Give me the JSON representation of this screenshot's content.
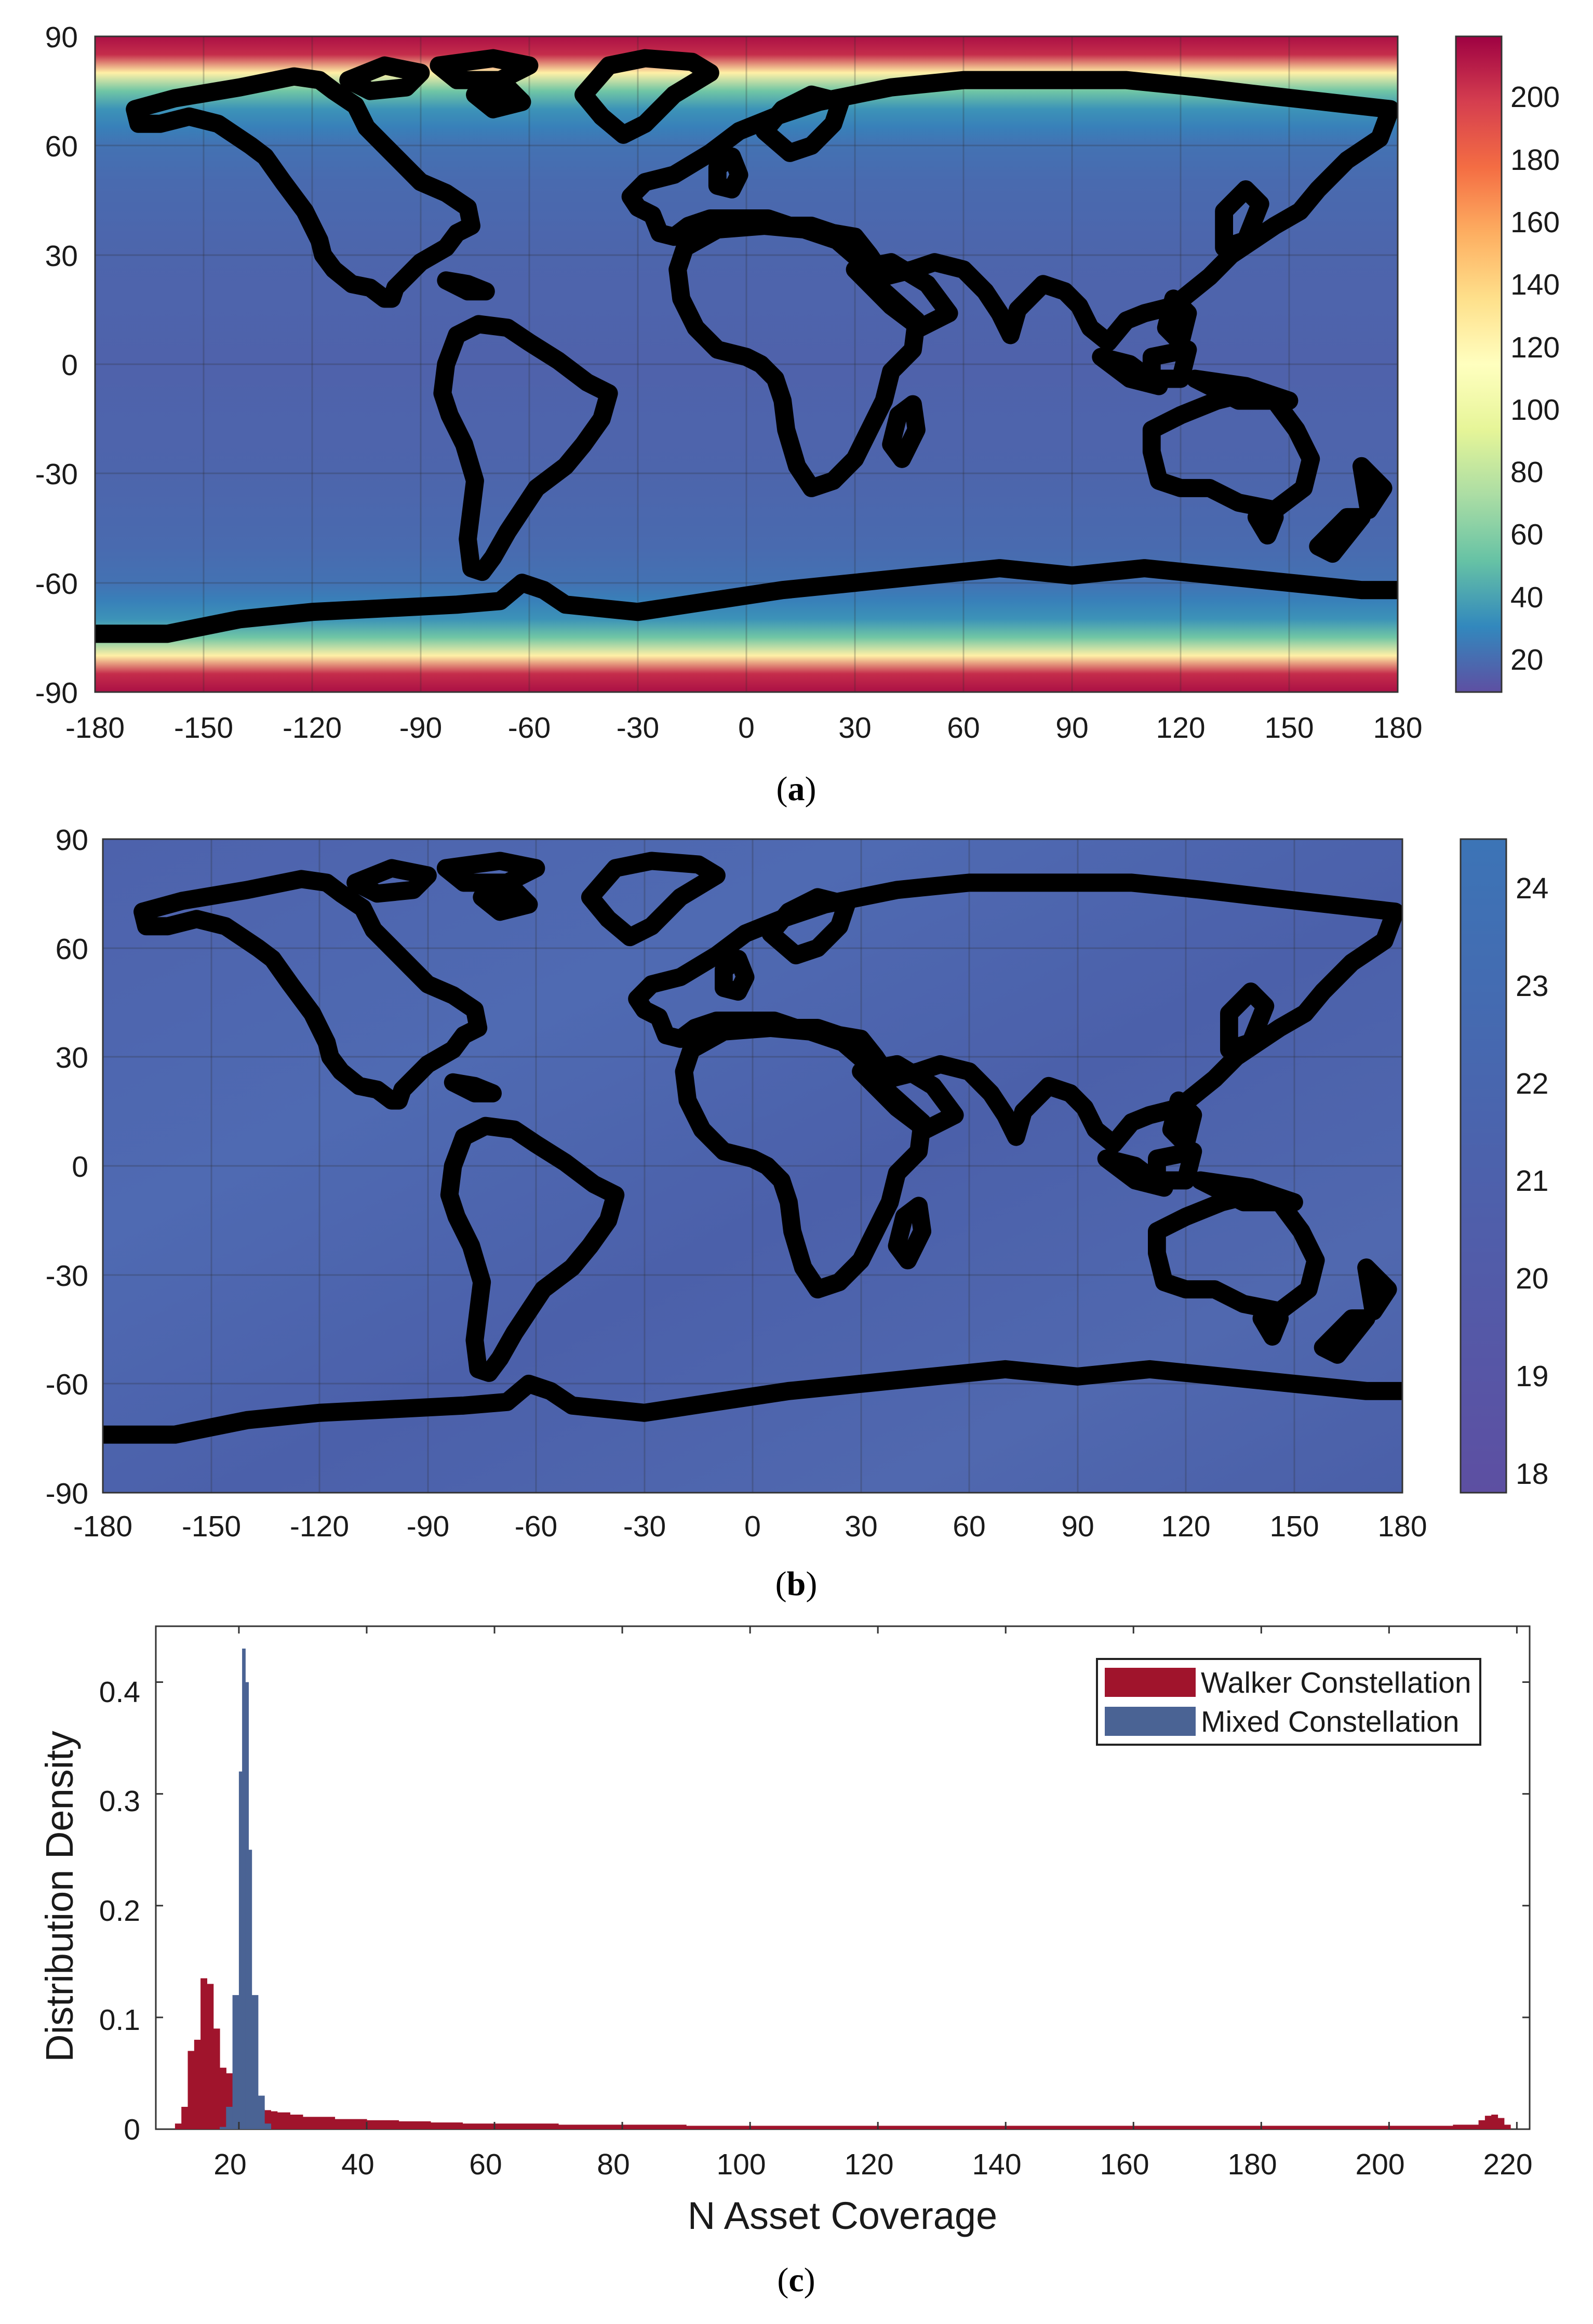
{
  "captions": {
    "a": "a",
    "b": "b",
    "c": "c"
  },
  "chart_data": [
    {
      "panel": "a",
      "type": "heatmap",
      "title": "",
      "xlabel": "",
      "ylabel": "",
      "xlim": [
        -180,
        180
      ],
      "ylim": [
        -90,
        90
      ],
      "x_ticks": [
        "-180",
        "-150",
        "-120",
        "-90",
        "-60",
        "-30",
        "0",
        "30",
        "60",
        "90",
        "120",
        "150",
        "180"
      ],
      "y_ticks": [
        "90",
        "60",
        "30",
        "0",
        "-30",
        "-60",
        "-90"
      ],
      "colorbar": {
        "colormap": "spectral",
        "range": [
          10,
          220
        ],
        "ticks": [
          "200",
          "180",
          "160",
          "140",
          "120",
          "100",
          "80",
          "60",
          "40",
          "20"
        ]
      },
      "latitude_profile": {
        "lat": [
          -90,
          -85,
          -80,
          -75,
          -70,
          -65,
          -60,
          -50,
          -30,
          0,
          30,
          50,
          60,
          65,
          70,
          75,
          80,
          85,
          90
        ],
        "value": [
          215,
          205,
          125,
          55,
          35,
          28,
          23,
          20,
          18,
          17,
          18,
          20,
          23,
          28,
          35,
          55,
          125,
          205,
          215
        ]
      },
      "overlay": "world coastlines",
      "grid": true
    },
    {
      "panel": "b",
      "type": "heatmap",
      "title": "",
      "xlabel": "",
      "ylabel": "",
      "xlim": [
        -180,
        180
      ],
      "ylim": [
        -90,
        90
      ],
      "x_ticks": [
        "-180",
        "-150",
        "-120",
        "-90",
        "-60",
        "-30",
        "0",
        "30",
        "60",
        "90",
        "120",
        "150",
        "180"
      ],
      "y_ticks": [
        "90",
        "60",
        "30",
        "0",
        "-30",
        "-60",
        "-90"
      ],
      "colorbar": {
        "colormap": "spectral",
        "range": [
          17.8,
          24.5
        ],
        "ticks": [
          "24",
          "23",
          "22",
          "21",
          "20",
          "19",
          "18"
        ]
      },
      "approx_value_range": [
        19.5,
        21
      ],
      "overlay": "world coastlines",
      "grid": true
    },
    {
      "panel": "c",
      "type": "bar",
      "title": "",
      "xlabel": "N Asset Coverage",
      "ylabel": "Distribution Density",
      "xlim": [
        7,
        222
      ],
      "ylim": [
        0,
        0.45
      ],
      "x_ticks": [
        "20",
        "40",
        "60",
        "80",
        "100",
        "120",
        "140",
        "160",
        "180",
        "200",
        "220"
      ],
      "y_ticks": [
        "0",
        "0.1",
        "0.2",
        "0.3",
        "0.4"
      ],
      "legend_position": "top-right",
      "series": [
        {
          "name": "Walker Constellation",
          "color": "#A0142C",
          "x": [
            10,
            11,
            12,
            13,
            14,
            15,
            16,
            17,
            18,
            19,
            20,
            21,
            22,
            23,
            24,
            25,
            26,
            28,
            30,
            35,
            40,
            45,
            50,
            55,
            60,
            70,
            80,
            90,
            100,
            110,
            120,
            130,
            140,
            150,
            160,
            170,
            180,
            190,
            200,
            210,
            214,
            215,
            216,
            217,
            218
          ],
          "values": [
            0.005,
            0.02,
            0.07,
            0.08,
            0.135,
            0.13,
            0.09,
            0.055,
            0.05,
            0.04,
            0.03,
            0.025,
            0.02,
            0.018,
            0.017,
            0.016,
            0.015,
            0.013,
            0.011,
            0.009,
            0.008,
            0.007,
            0.006,
            0.005,
            0.005,
            0.004,
            0.004,
            0.003,
            0.003,
            0.003,
            0.003,
            0.003,
            0.003,
            0.003,
            0.003,
            0.003,
            0.003,
            0.003,
            0.003,
            0.004,
            0.008,
            0.012,
            0.013,
            0.01,
            0.004
          ]
        },
        {
          "name": "Mixed Constellation",
          "color": "#4A6394",
          "x": [
            17,
            18,
            19,
            20,
            20.5,
            21,
            21.5,
            22,
            23,
            24
          ],
          "values": [
            0.002,
            0.02,
            0.12,
            0.32,
            0.43,
            0.4,
            0.25,
            0.12,
            0.03,
            0.005
          ]
        }
      ]
    }
  ]
}
